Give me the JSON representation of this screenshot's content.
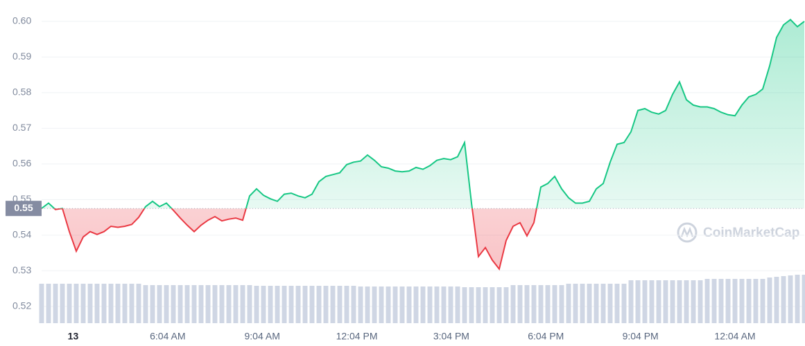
{
  "chart_data": {
    "type": "line",
    "x": [
      0,
      0.22,
      0.44,
      0.66,
      0.88,
      1.1,
      1.32,
      1.54,
      1.76,
      1.98,
      2.2,
      2.42,
      2.64,
      2.86,
      3.08,
      3.3,
      3.52,
      3.74,
      3.96,
      4.18,
      4.4,
      4.62,
      4.84,
      5.06,
      5.28,
      5.5,
      5.72,
      5.94,
      6.16,
      6.38,
      6.6,
      6.82,
      7.04,
      7.26,
      7.48,
      7.7,
      7.92,
      8.14,
      8.36,
      8.58,
      8.8,
      9.02,
      9.24,
      9.46,
      9.68,
      9.9,
      10.12,
      10.34,
      10.56,
      10.78,
      11,
      11.22,
      11.44,
      11.66,
      11.88,
      12.1,
      12.32,
      12.54,
      12.76,
      12.98,
      13.2,
      13.42,
      13.64,
      13.86,
      14.08,
      14.3,
      14.52,
      14.74,
      14.96,
      15.18,
      15.4,
      15.62,
      15.84,
      16.06,
      16.28,
      16.5,
      16.72,
      16.94,
      17.16,
      17.38,
      17.6,
      17.82,
      18.04,
      18.26,
      18.48,
      18.7,
      18.92,
      19.14,
      19.36,
      19.58,
      19.8,
      20.02,
      20.24,
      20.46,
      20.68,
      20.9,
      21.12,
      21.34,
      21.56,
      21.78,
      22,
      22.22,
      22.44,
      22.66,
      22.88,
      23.1,
      23.32,
      23.54,
      23.76,
      23.98,
      24.2
    ],
    "series": [
      {
        "color": "#16c784",
        "color_below": "#ea3943",
        "values": [
          0.5475,
          0.549,
          0.5472,
          0.5475,
          0.541,
          0.5355,
          0.5395,
          0.541,
          0.5402,
          0.541,
          0.5425,
          0.5422,
          0.5425,
          0.543,
          0.545,
          0.548,
          0.5495,
          0.548,
          0.549,
          0.547,
          0.5448,
          0.5428,
          0.541,
          0.5428,
          0.5442,
          0.5452,
          0.544,
          0.5445,
          0.5448,
          0.5442,
          0.551,
          0.553,
          0.5512,
          0.5502,
          0.5495,
          0.5515,
          0.5518,
          0.551,
          0.5505,
          0.5515,
          0.555,
          0.5565,
          0.557,
          0.5575,
          0.5598,
          0.5605,
          0.5608,
          0.5625,
          0.561,
          0.5592,
          0.5588,
          0.558,
          0.5578,
          0.558,
          0.559,
          0.5585,
          0.5595,
          0.561,
          0.5615,
          0.5612,
          0.562,
          0.566,
          0.549,
          0.534,
          0.5365,
          0.533,
          0.5305,
          0.5385,
          0.5425,
          0.5435,
          0.5398,
          0.5435,
          0.5535,
          0.5545,
          0.5565,
          0.553,
          0.5505,
          0.549,
          0.549,
          0.5495,
          0.553,
          0.5545,
          0.5605,
          0.5655,
          0.566,
          0.569,
          0.575,
          0.5755,
          0.5745,
          0.574,
          0.575,
          0.5795,
          0.583,
          0.578,
          0.5765,
          0.576,
          0.576,
          0.5755,
          0.5745,
          0.5738,
          0.5735,
          0.5765,
          0.5788,
          0.5795,
          0.581,
          0.5875,
          0.5955,
          0.599,
          0.6005,
          0.5985,
          0.6
        ]
      }
    ],
    "volume": {
      "color": "#cfd6e4",
      "values": [
        57,
        57,
        57,
        57,
        57,
        57,
        57,
        57,
        57,
        57,
        57,
        57,
        57,
        57,
        57,
        55,
        55,
        55,
        55,
        55,
        55,
        55,
        55,
        55,
        55,
        55,
        55,
        55,
        55,
        55,
        55,
        54,
        54,
        54,
        54,
        54,
        54,
        54,
        54,
        54,
        54,
        54,
        54,
        54,
        54,
        54,
        53,
        53,
        53,
        53,
        53,
        53,
        53,
        53,
        53,
        53,
        53,
        53,
        53,
        53,
        53,
        52,
        52,
        52,
        52,
        52,
        52,
        52,
        55,
        55,
        55,
        55,
        55,
        55,
        55,
        55,
        57,
        57,
        57,
        57,
        57,
        57,
        57,
        57,
        57,
        62,
        62,
        62,
        62,
        62,
        62,
        62,
        62,
        62,
        62,
        62,
        64,
        64,
        64,
        64,
        64,
        64,
        64,
        64,
        64,
        66,
        67,
        68,
        69,
        70,
        70
      ]
    },
    "baseline": {
      "value": 0.5475,
      "label": "0.55"
    },
    "xlim": [
      0,
      24.2
    ],
    "xticks": [
      {
        "value": 1,
        "label": "13"
      },
      {
        "value": 4,
        "label": "6:04 AM"
      },
      {
        "value": 7,
        "label": "9:04 AM"
      },
      {
        "value": 10,
        "label": "12:04 PM"
      },
      {
        "value": 13,
        "label": "3:04 PM"
      },
      {
        "value": 16,
        "label": "6:04 PM"
      },
      {
        "value": 19,
        "label": "9:04 PM"
      },
      {
        "value": 22,
        "label": "12:04 AM"
      }
    ],
    "ylim": [
      0.5153,
      0.606
    ],
    "yticks": [
      0.52,
      0.53,
      0.54,
      0.55,
      0.56,
      0.57,
      0.58,
      0.59,
      {
        "value": 0.6,
        "label": "0.60"
      }
    ],
    "grid": true,
    "watermark": "CoinMarketCap"
  }
}
